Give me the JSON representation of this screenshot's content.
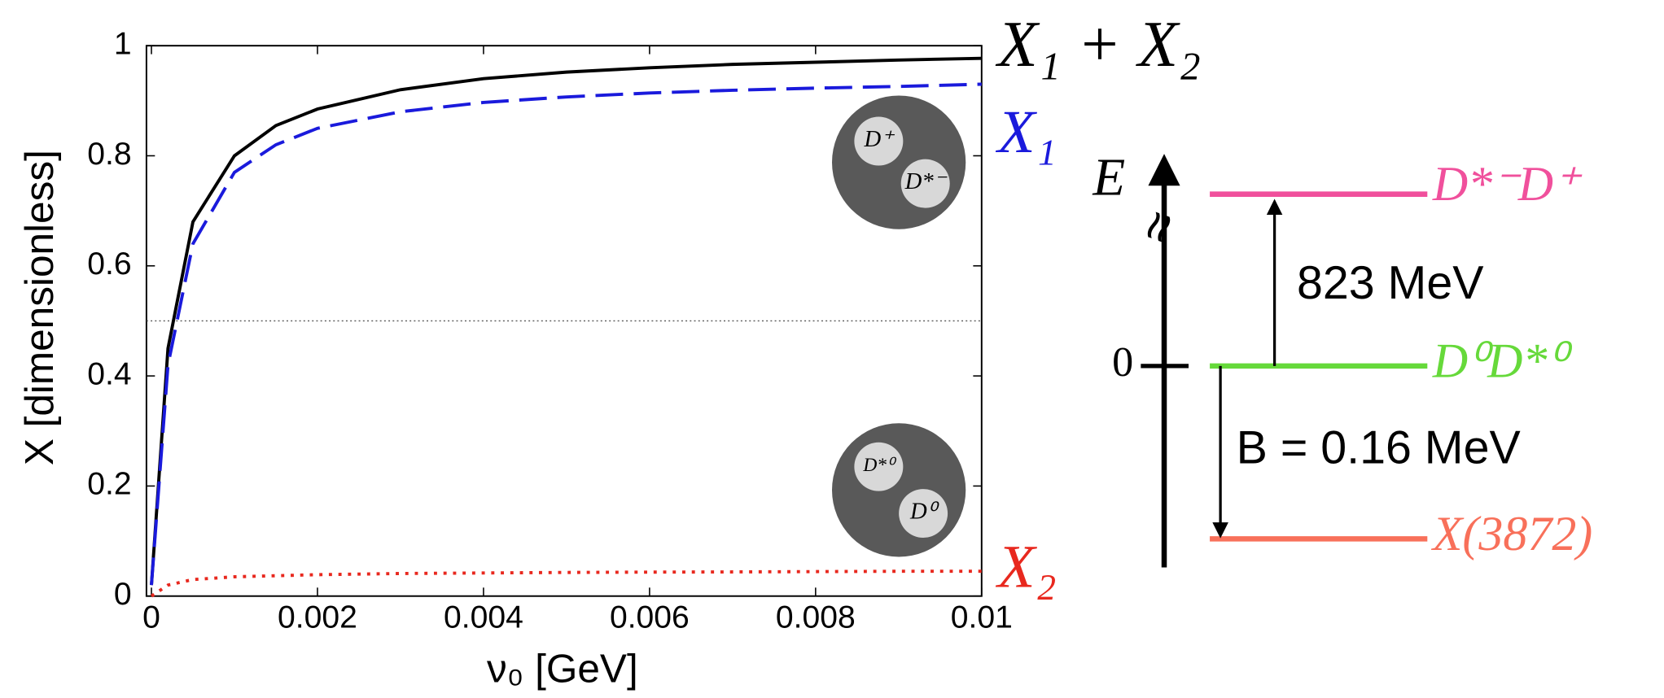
{
  "chart_data": {
    "type": "line",
    "xlabel": "ν₀ [GeV]",
    "ylabel": "X [dimensionless]",
    "x": [
      0,
      0.0002,
      0.0005,
      0.001,
      0.0015,
      0.002,
      0.003,
      0.004,
      0.005,
      0.006,
      0.007,
      0.008,
      0.009,
      0.01
    ],
    "series": [
      {
        "name": "X₁ + X₂",
        "color": "#000000",
        "dash": "solid",
        "values": [
          0.02,
          0.45,
          0.68,
          0.8,
          0.855,
          0.885,
          0.92,
          0.94,
          0.952,
          0.96,
          0.966,
          0.97,
          0.974,
          0.977
        ]
      },
      {
        "name": "X₁",
        "color": "#1a1adc",
        "dash": "dashed",
        "values": [
          0.02,
          0.42,
          0.64,
          0.77,
          0.82,
          0.85,
          0.88,
          0.897,
          0.907,
          0.914,
          0.919,
          0.923,
          0.926,
          0.93
        ]
      },
      {
        "name": "X₂",
        "color": "#e8281e",
        "dash": "dotted",
        "values": [
          0,
          0.02,
          0.03,
          0.035,
          0.037,
          0.039,
          0.041,
          0.042,
          0.043,
          0.0435,
          0.044,
          0.0445,
          0.045,
          0.045
        ]
      }
    ],
    "reference_line": 0.5,
    "xlim": [
      -6e-05,
      0.01
    ],
    "ylim": [
      0,
      1
    ],
    "xticks": [
      0,
      0.002,
      0.004,
      0.006,
      0.008,
      0.01
    ],
    "yticks": [
      0,
      0.2,
      0.4,
      0.6,
      0.8,
      1
    ]
  },
  "insets": [
    [
      "D⁺",
      "D*⁻"
    ],
    [
      "D*⁰",
      "D⁰"
    ]
  ],
  "level_diagram": {
    "axis_label": "E",
    "break_mark": "≈",
    "zero_label": "0",
    "levels": [
      {
        "label": "D*⁻D⁺",
        "color": "#f0509c"
      },
      {
        "label": "D⁰D*⁰",
        "color": "#66d93a"
      },
      {
        "label": "X(3872)",
        "color": "#f8705a"
      }
    ],
    "gap_up": "823 MeV",
    "gap_down": "B = 0.16 MeV"
  }
}
